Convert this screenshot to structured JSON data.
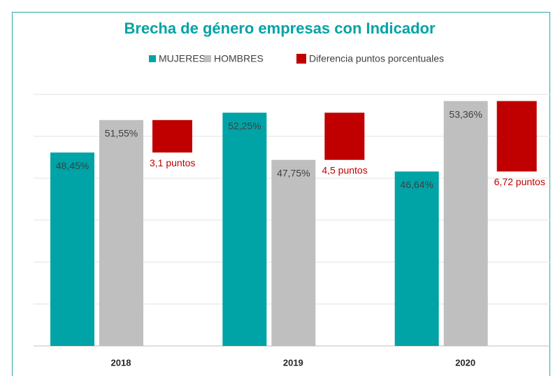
{
  "chart_data": {
    "type": "bar",
    "title": "Brecha de género empresas con Indicador",
    "categories": [
      "2018",
      "2019",
      "2020"
    ],
    "series": [
      {
        "name": "MUJERES",
        "color": "#00a3a6",
        "values": [
          48.45,
          52.25,
          46.64
        ],
        "value_labels": [
          "48,45%",
          "52,25%",
          "46,64%"
        ]
      },
      {
        "name": "HOMBRES",
        "color": "#bfbfbf",
        "values": [
          51.55,
          47.75,
          53.36
        ],
        "value_labels": [
          "51,55%",
          "47,75%",
          "53,36%"
        ]
      },
      {
        "name": "Diferencia puntos porcentuales",
        "color": "#c00000",
        "values": [
          3.1,
          4.5,
          6.72
        ],
        "value_labels": [
          "3,1 puntos",
          "4,5 puntos",
          "6,72 puntos"
        ],
        "floating": true
      }
    ],
    "ylim": [
      30,
      54
    ],
    "yticks": [
      30,
      34,
      38,
      42,
      46,
      50,
      54
    ],
    "grid": true,
    "ytick_labels_visible": false,
    "legend": "top"
  }
}
